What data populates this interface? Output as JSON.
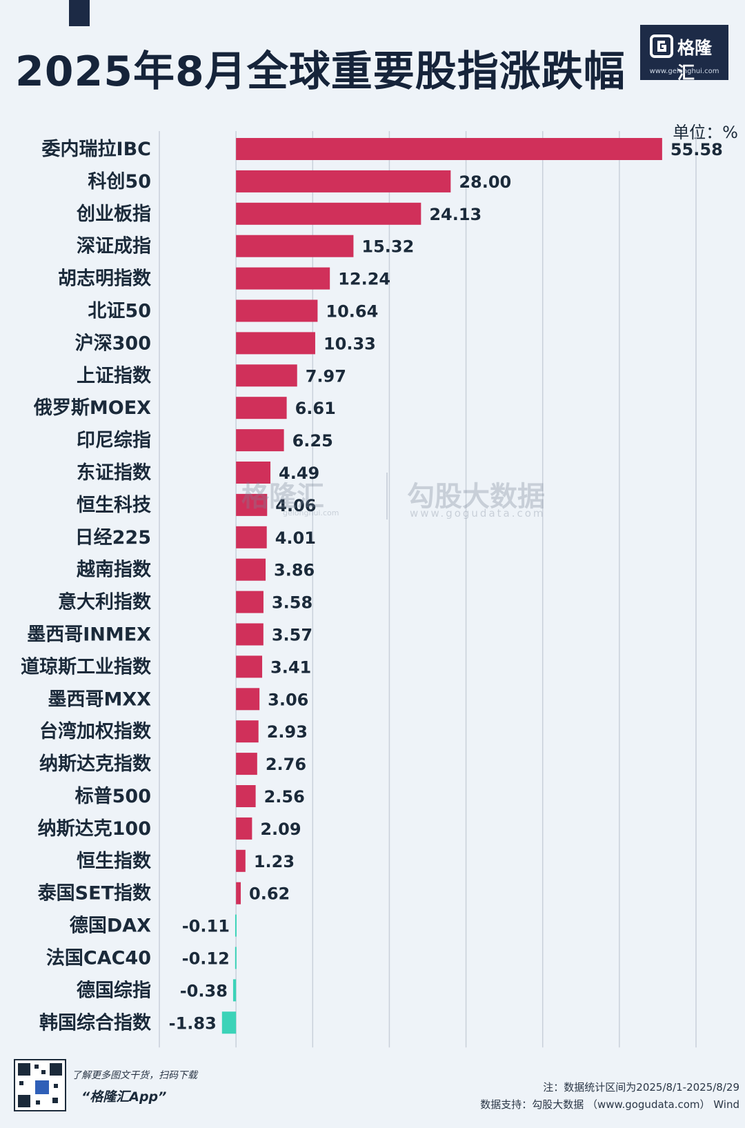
{
  "title": "2025年8月全球重要股指涨跌幅",
  "logo": {
    "name": "格隆汇",
    "url": "www.gelonghui.com",
    "icon": "g-logo-icon"
  },
  "unit_label": "单位：%",
  "watermark": {
    "brand_a": "格隆汇",
    "brand_a_sub": "gelonghui.com",
    "brand_b": "勾股大数据",
    "brand_b_url": "www.gogudata.com"
  },
  "footer": {
    "promo": "了解更多图文干货，扫码下载",
    "app_name": "“格隆汇App”",
    "note": "注：数据统计区间为2025/8/1-2025/8/29",
    "source": "数据支持：勾股大数据 （www.gogudata.com） Wind",
    "corner_brand": "格隆汇"
  },
  "colors": {
    "positive": "#d0305a",
    "negative": "#3bd3b8",
    "grid": "#c9d0da"
  },
  "chart_data": {
    "type": "bar",
    "orientation": "horizontal",
    "categories": [
      "委内瑞拉IBC",
      "科创50",
      "创业板指",
      "深证成指",
      "胡志明指数",
      "北证50",
      "沪深300",
      "上证指数",
      "俄罗斯MOEX",
      "印尼综指",
      "东证指数",
      "恒生科技",
      "日经225",
      "越南指数",
      "意大利指数",
      "墨西哥INMEX",
      "道琼斯工业指数",
      "墨西哥MXX",
      "台湾加权指数",
      "纳斯达克指数",
      "标普500",
      "纳斯达克100",
      "恒生指数",
      "泰国SET指数",
      "德国DAX",
      "法国CAC40",
      "德国综指",
      "韩国综合指数"
    ],
    "values": [
      55.58,
      28.0,
      24.13,
      15.32,
      12.24,
      10.64,
      10.33,
      7.97,
      6.61,
      6.25,
      4.49,
      4.06,
      4.01,
      3.86,
      3.58,
      3.57,
      3.41,
      3.06,
      2.93,
      2.76,
      2.56,
      2.09,
      1.23,
      0.62,
      -0.11,
      -0.12,
      -0.38,
      -1.83
    ],
    "value_labels": [
      "55.58",
      "28.00",
      "24.13",
      "15.32",
      "12.24",
      "10.64",
      "10.33",
      "7.97",
      "6.61",
      "6.25",
      "4.49",
      "4.06",
      "4.01",
      "3.86",
      "3.58",
      "3.57",
      "3.41",
      "3.06",
      "2.93",
      "2.76",
      "2.56",
      "2.09",
      "1.23",
      "0.62",
      "-0.11",
      "-0.12",
      "-0.38",
      "-1.83"
    ],
    "xlim": [
      -10,
      60
    ],
    "grid": true,
    "gridlines_at": [
      -10,
      0,
      10,
      20,
      30,
      40,
      50,
      60
    ]
  }
}
